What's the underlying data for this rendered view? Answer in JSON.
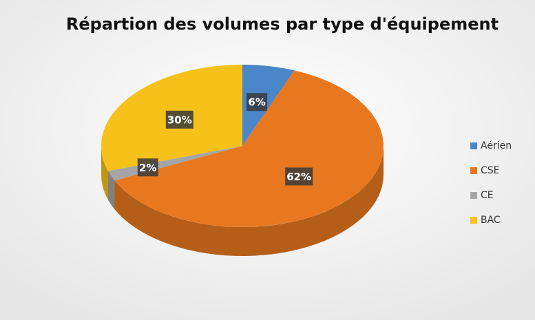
{
  "chart_data": {
    "type": "pie",
    "title": "Répartion des volumes par type d'équipement",
    "categories": [
      "Aérien",
      "CSE",
      "CE",
      "BAC"
    ],
    "values": [
      6,
      62,
      2,
      30
    ],
    "value_labels": [
      "6%",
      "62%",
      "2%",
      "30%"
    ],
    "colors": [
      "#4a86c8",
      "#e8781f",
      "#a5a5a5",
      "#f6c21a"
    ],
    "legend": "right"
  }
}
